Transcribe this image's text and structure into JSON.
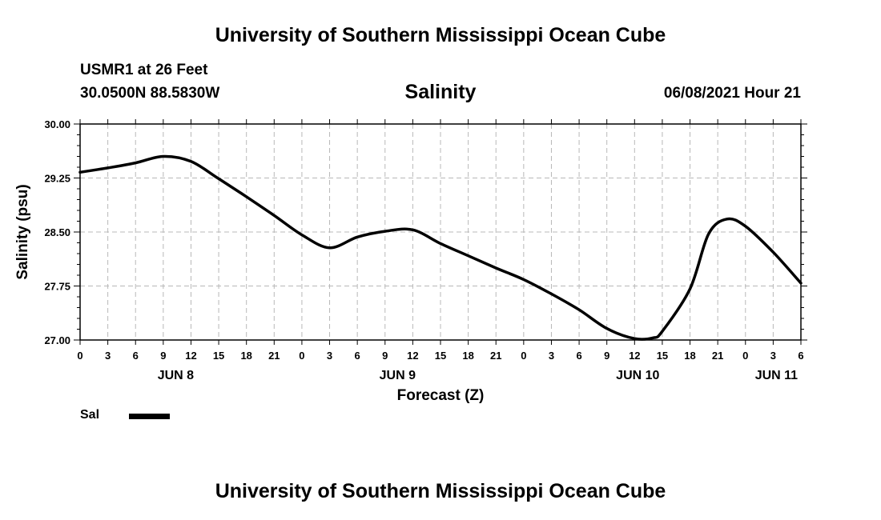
{
  "header": {
    "title": "University of Southern Mississippi Ocean Cube",
    "station": "USMR1 at 26 Feet",
    "coordinates": "30.0500N  88.5830W",
    "variable": "Salinity",
    "issued": "06/08/2021 Hour 21"
  },
  "footer": {
    "title": "University of Southern Mississippi Ocean Cube"
  },
  "legend": {
    "label": "Sal"
  },
  "chart_data": {
    "type": "line",
    "title": "Salinity",
    "xlabel": "Forecast (Z)",
    "ylabel": "Salinity (psu)",
    "ylim": [
      27.0,
      30.0
    ],
    "yticks": [
      "30.00",
      "29.25",
      "28.50",
      "27.75",
      "27.00"
    ],
    "xlim_hours": [
      0,
      78
    ],
    "xticks": [
      "0",
      "3",
      "6",
      "9",
      "12",
      "15",
      "18",
      "21",
      "0",
      "3",
      "6",
      "9",
      "12",
      "15",
      "18",
      "21",
      "0",
      "3",
      "6",
      "9",
      "12",
      "15",
      "18",
      "21",
      "0",
      "3",
      "6"
    ],
    "days": [
      {
        "label": "JUN 8",
        "hour": 10
      },
      {
        "label": "JUN 9",
        "hour": 34
      },
      {
        "label": "JUN 10",
        "hour": 60
      },
      {
        "label": "JUN 11",
        "hour": 75
      }
    ],
    "grid": true,
    "series": [
      {
        "name": "Sal",
        "color": "#000000",
        "x": [
          0,
          3,
          6,
          9,
          12,
          15,
          18,
          21,
          24,
          27,
          30,
          33,
          36,
          39,
          42,
          45,
          48,
          51,
          54,
          57,
          60,
          62,
          63,
          66,
          68,
          70,
          72,
          75,
          78
        ],
        "y": [
          29.33,
          29.39,
          29.46,
          29.55,
          29.48,
          29.24,
          28.99,
          28.73,
          28.46,
          28.28,
          28.43,
          28.51,
          28.53,
          28.34,
          28.17,
          28.0,
          27.84,
          27.64,
          27.42,
          27.16,
          27.02,
          27.03,
          27.12,
          27.71,
          28.47,
          28.68,
          28.58,
          28.22,
          27.79
        ]
      }
    ]
  }
}
